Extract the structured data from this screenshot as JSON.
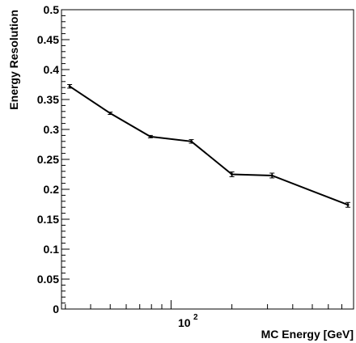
{
  "chart_data": {
    "type": "line",
    "xlabel": "MC Energy [GeV]",
    "ylabel": "Energy Resolution",
    "x_scale": "log",
    "xlim": [
      28.7,
      800
    ],
    "ylim": [
      0,
      0.5
    ],
    "x_tick_label_base": "10",
    "x_tick_label_exp": "2",
    "y_ticks": [
      {
        "value": 0,
        "label": "0"
      },
      {
        "value": 0.05,
        "label": "0.05"
      },
      {
        "value": 0.1,
        "label": "0.1"
      },
      {
        "value": 0.15,
        "label": "0.15"
      },
      {
        "value": 0.2,
        "label": "0.2"
      },
      {
        "value": 0.25,
        "label": "0.25"
      },
      {
        "value": 0.3,
        "label": "0.3"
      },
      {
        "value": 0.35,
        "label": "0.35"
      },
      {
        "value": 0.4,
        "label": "0.4"
      },
      {
        "value": 0.45,
        "label": "0.45"
      },
      {
        "value": 0.5,
        "label": "0.5"
      }
    ],
    "series": [
      {
        "points": [
          {
            "x": 31.5,
            "y": 0.372,
            "err": 0.003
          },
          {
            "x": 50,
            "y": 0.327,
            "err": 0.002
          },
          {
            "x": 79,
            "y": 0.288,
            "err": 0.002
          },
          {
            "x": 126,
            "y": 0.28,
            "err": 0.003
          },
          {
            "x": 200,
            "y": 0.225,
            "err": 0.004
          },
          {
            "x": 316,
            "y": 0.223,
            "err": 0.004
          },
          {
            "x": 750,
            "y": 0.174,
            "err": 0.004
          }
        ],
        "color": "#000000"
      }
    ],
    "grid": false
  }
}
